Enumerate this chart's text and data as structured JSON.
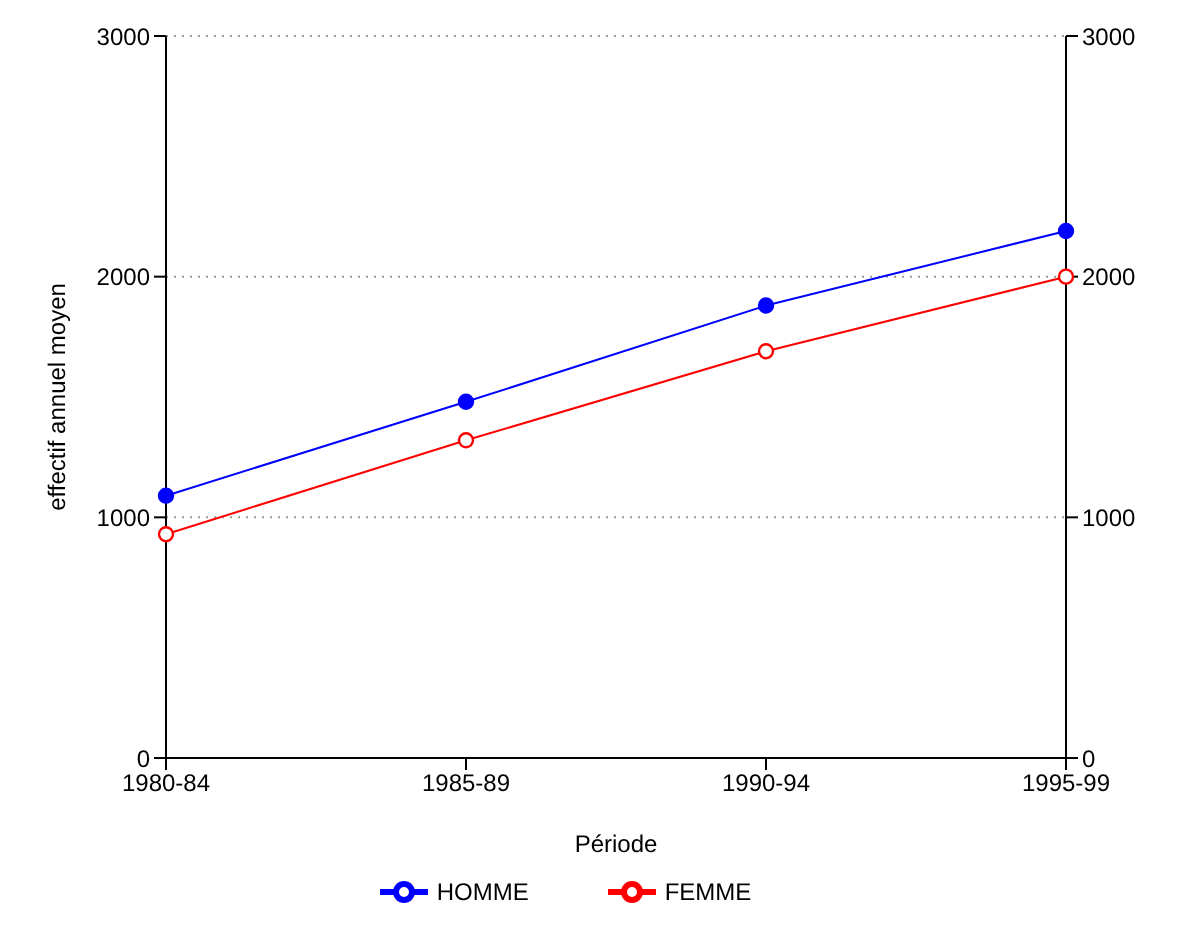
{
  "chart_data": {
    "type": "line",
    "xlabel": "Période",
    "ylabel": "effectif annuel moyen",
    "categories": [
      "1980-84",
      "1985-89",
      "1990-94",
      "1995-99"
    ],
    "series": [
      {
        "name": "HOMME",
        "color": "#0000ff",
        "values": [
          1090,
          1480,
          1880,
          2190
        ]
      },
      {
        "name": "FEMME",
        "color": "#ff0000",
        "values": [
          930,
          1320,
          1690,
          2000
        ]
      }
    ],
    "ylim": [
      0,
      3000
    ],
    "yticks": [
      0,
      1000,
      2000,
      3000
    ],
    "y2lim": [
      0,
      3000
    ],
    "y2ticks": [
      0,
      1000,
      2000,
      3000
    ],
    "grid": "y",
    "legend": "bottom",
    "marker": "circle",
    "line_style": "solid"
  }
}
